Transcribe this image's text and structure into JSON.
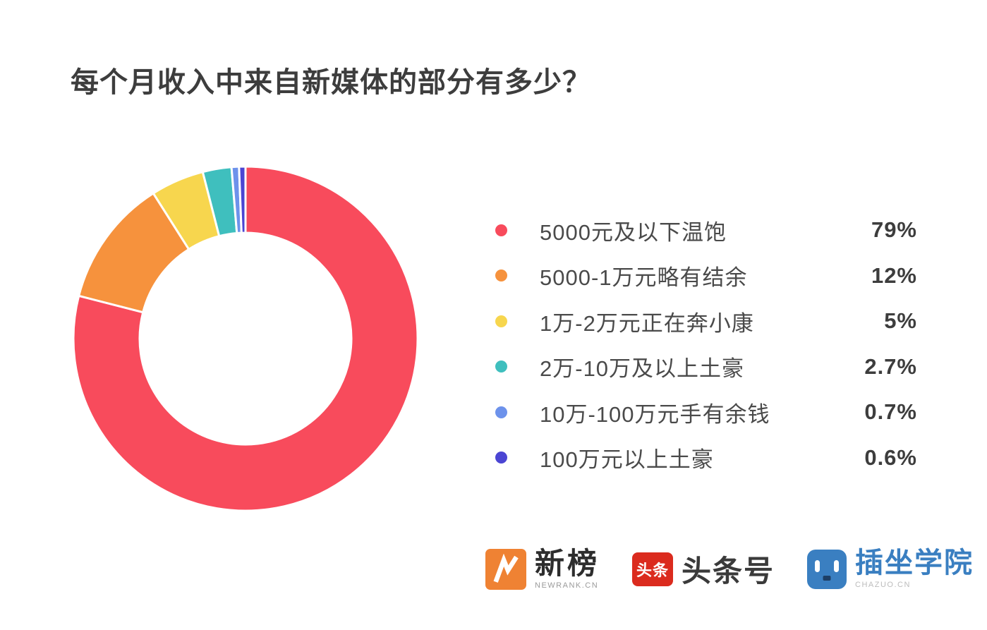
{
  "title": "每个月收入中来自新媒体的部分有多少？",
  "chart_data": {
    "type": "pie",
    "subtype": "donut",
    "title": "每个月收入中来自新媒体的部分有多少？",
    "direction": "clockwise",
    "start_angle_deg": 0,
    "inner_radius_ratio": 0.61,
    "legend_position": "right",
    "segments": [
      {
        "label": "5000元及以下温饱",
        "value": 79,
        "display": "79%",
        "color": "#F84B5C"
      },
      {
        "label": "5000-1万元略有结余",
        "value": 12,
        "display": "12%",
        "color": "#F6923D"
      },
      {
        "label": "1万-2万元正在奔小康",
        "value": 5,
        "display": "5%",
        "color": "#F7D64E"
      },
      {
        "label": "2万-10万及以上土豪",
        "value": 2.7,
        "display": "2.7%",
        "color": "#3FBFBE"
      },
      {
        "label": "10万-100万元手有余钱",
        "value": 0.7,
        "display": "0.7%",
        "color": "#6D92EB"
      },
      {
        "label": "100万元以上土豪",
        "value": 0.6,
        "display": "0.6%",
        "color": "#4B45D3"
      }
    ]
  },
  "footer": {
    "logos": [
      {
        "id": "newrank",
        "label": "新榜",
        "sublabel": "NEWRANK.CN",
        "icon": "lightning-n-icon",
        "brand_color": "#EF8233"
      },
      {
        "id": "toutiao",
        "label": "头条号",
        "icon_text": "头条",
        "icon": "toutiao-badge-icon",
        "brand_color": "#DB2B1E"
      },
      {
        "id": "chazuo",
        "label": "插坐学院",
        "sublabel": "CHAZUO.CN",
        "icon": "robot-face-icon",
        "brand_color": "#3A7FC1"
      }
    ]
  }
}
